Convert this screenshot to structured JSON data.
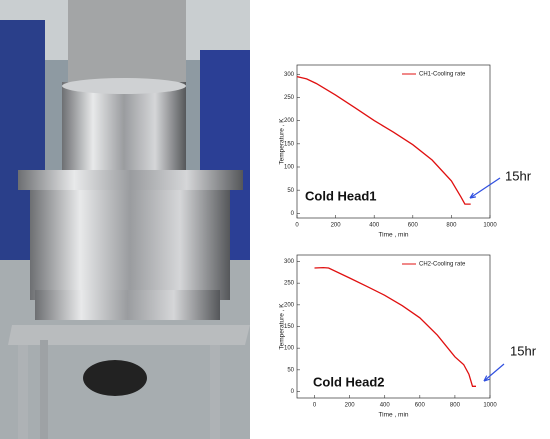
{
  "chart_data": [
    {
      "type": "line",
      "x_label": "Time , min",
      "y_label": "Temperature , K",
      "x": [
        0,
        50,
        100,
        200,
        300,
        400,
        500,
        600,
        700,
        800,
        850,
        870,
        900
      ],
      "series": [
        {
          "name": "CH1-Cooling rate",
          "color": "#e01010",
          "values": [
            295,
            290,
            280,
            255,
            228,
            200,
            175,
            148,
            115,
            70,
            35,
            20,
            20
          ]
        }
      ],
      "xlim": [
        0,
        1000
      ],
      "xticks": [
        0,
        200,
        400,
        600,
        800,
        1000
      ],
      "ylim": [
        -10,
        320
      ],
      "yticks": [
        0,
        50,
        100,
        150,
        200,
        250,
        300
      ],
      "annotations": [
        "Cold Head1",
        "15hr"
      ]
    },
    {
      "type": "line",
      "x_label": "Time , min",
      "y_label": "Temperature , K",
      "x": [
        0,
        50,
        80,
        200,
        300,
        400,
        500,
        600,
        700,
        800,
        850,
        880,
        900,
        920
      ],
      "series": [
        {
          "name": "CH2-Cooling rate",
          "color": "#e01010",
          "values": [
            285,
            286,
            285,
            262,
            242,
            222,
            198,
            170,
            130,
            80,
            62,
            40,
            12,
            12
          ]
        }
      ],
      "xlim": [
        -100,
        1000
      ],
      "xticks": [
        0,
        200,
        400,
        600,
        800,
        1000
      ],
      "ylim": [
        -15,
        315
      ],
      "yticks": [
        0,
        50,
        100,
        150,
        200,
        250,
        300
      ],
      "annotations": [
        "Cold Head2",
        "15hr"
      ]
    }
  ]
}
